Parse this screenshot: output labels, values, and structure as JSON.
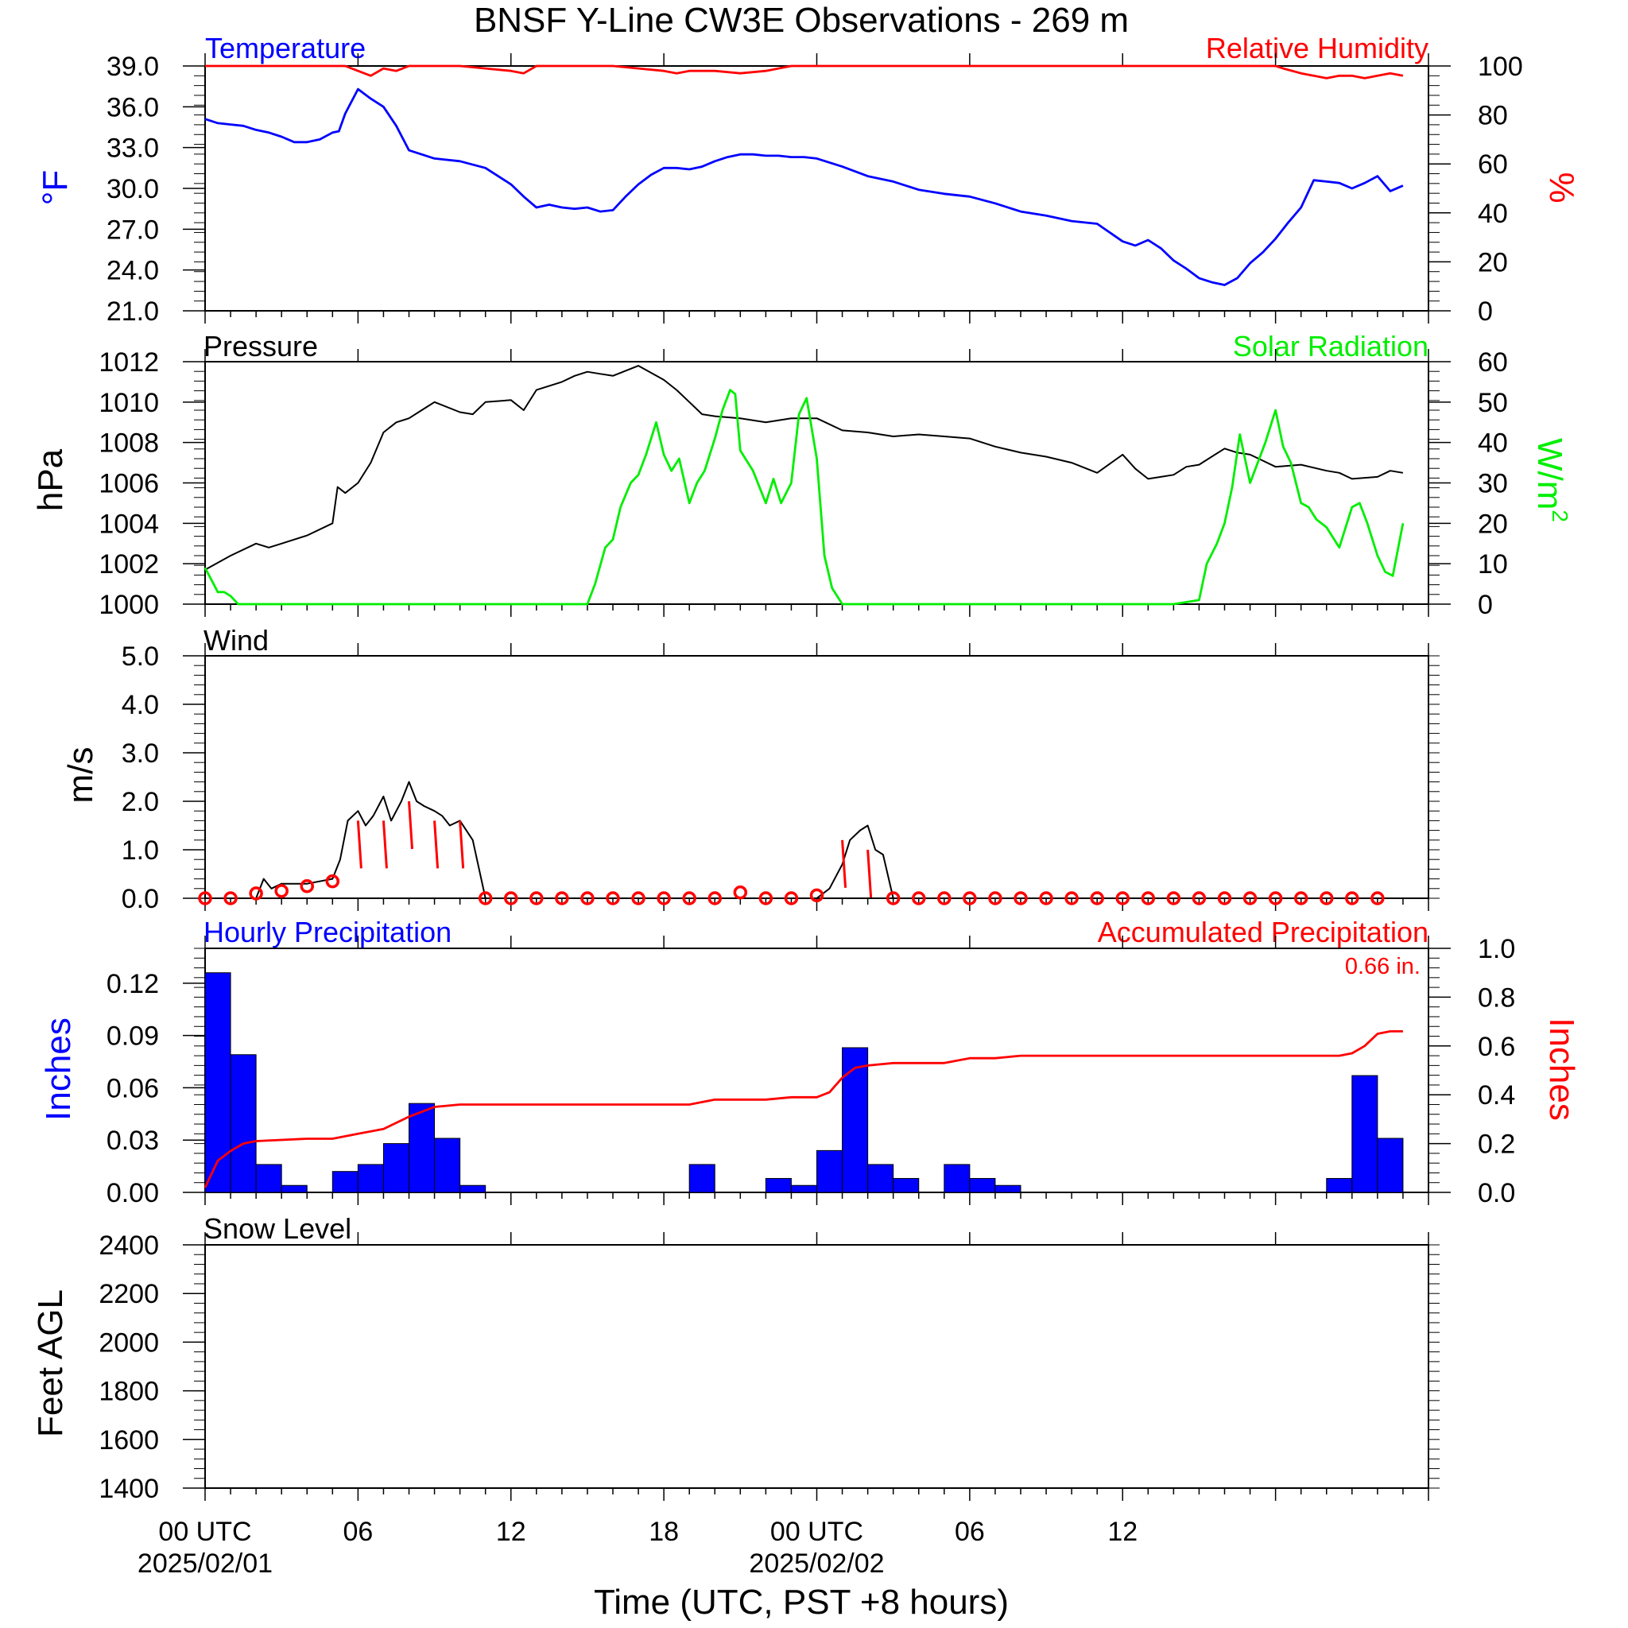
{
  "title": "BNSF Y-Line CW3E Observations - 269 m",
  "xaxis": {
    "title": "Time (UTC, PST +8 hours)",
    "tick_labels": [
      "00 UTC",
      "06",
      "12",
      "18",
      "00 UTC",
      "06",
      "12"
    ],
    "tick_hours": [
      0,
      6,
      12,
      18,
      24,
      30,
      36
    ],
    "date_labels": [
      "2025/02/01",
      "2025/02/02"
    ],
    "date_hours": [
      0,
      24
    ],
    "range_hours": [
      0,
      48
    ]
  },
  "colors": {
    "blue": "#0000ff",
    "red": "#ff0000",
    "green": "#00ee00",
    "black": "#000000"
  },
  "chart_data": [
    {
      "type": "line",
      "panel": "temperature-humidity",
      "left_title": "Temperature",
      "right_title": "Relative Humidity",
      "ylabel": "°F",
      "ylabel_right": "%",
      "ylim": [
        21,
        39
      ],
      "ylim_right": [
        0,
        100
      ],
      "yticks": [
        "21.0",
        "24.0",
        "27.0",
        "30.0",
        "33.0",
        "36.0",
        "39.0"
      ],
      "yticks_right": [
        "0",
        "20",
        "40",
        "60",
        "80",
        "100"
      ],
      "series": [
        {
          "name": "Temperature",
          "axis": "left",
          "color": "#0000ff",
          "x": [
            0,
            0.5,
            1,
            1.5,
            2,
            2.5,
            3,
            3.5,
            4,
            4.5,
            5,
            5.25,
            5.5,
            6,
            6.5,
            7,
            7.5,
            8,
            9,
            10,
            11,
            12,
            12.5,
            13,
            13.5,
            14,
            14.5,
            15,
            15.5,
            16,
            16.5,
            17,
            17.5,
            18,
            18.5,
            19,
            19.5,
            20,
            20.5,
            21,
            21.5,
            22,
            22.5,
            23,
            23.5,
            24,
            25,
            26,
            27,
            28,
            29,
            30,
            31,
            32,
            33,
            34,
            35,
            36,
            36.5,
            37,
            37.5,
            38,
            38.5,
            39,
            39.5,
            40,
            40.5,
            41,
            41.5,
            42,
            42.5,
            43,
            43.5,
            44,
            44.5,
            45,
            45.5,
            46,
            46.5,
            47
          ],
          "values": [
            35.1,
            34.8,
            34.7,
            34.6,
            34.3,
            34.1,
            33.8,
            33.4,
            33.4,
            33.6,
            34.1,
            34.2,
            35.5,
            37.3,
            36.6,
            36.0,
            34.6,
            32.8,
            32.2,
            32.0,
            31.5,
            30.3,
            29.4,
            28.6,
            28.8,
            28.6,
            28.5,
            28.6,
            28.3,
            28.4,
            29.4,
            30.3,
            31.0,
            31.5,
            31.5,
            31.4,
            31.6,
            32.0,
            32.3,
            32.5,
            32.5,
            32.4,
            32.4,
            32.3,
            32.3,
            32.2,
            31.6,
            30.9,
            30.5,
            29.9,
            29.6,
            29.4,
            28.9,
            28.3,
            28.0,
            27.6,
            27.4,
            26.1,
            25.8,
            26.2,
            25.6,
            24.7,
            24.1,
            23.4,
            23.1,
            22.9,
            23.4,
            24.5,
            25.3,
            26.3,
            27.5,
            28.6,
            30.6,
            30.5,
            30.4,
            30.0,
            30.4,
            30.9,
            29.8,
            30.2
          ]
        },
        {
          "name": "Relative Humidity",
          "axis": "right",
          "color": "#ff0000",
          "x": [
            0,
            4,
            5.5,
            6,
            6.5,
            7,
            7.5,
            8,
            9,
            10,
            11,
            12,
            12.5,
            13,
            14,
            15,
            16,
            17,
            18,
            18.5,
            19,
            20,
            21,
            22,
            23,
            24,
            30,
            36,
            40,
            41,
            42,
            42.3,
            43,
            43.5,
            44,
            44.5,
            45,
            45.5,
            46,
            46.5,
            47
          ],
          "values": [
            100,
            100,
            100,
            98,
            96,
            99,
            98,
            100,
            100,
            100,
            99,
            98,
            97,
            100,
            100,
            100,
            100,
            99,
            98,
            97,
            98,
            98,
            97,
            98,
            100,
            100,
            100,
            100,
            100,
            100,
            100,
            99,
            97,
            96,
            95,
            96,
            96,
            95,
            96,
            97,
            96
          ]
        }
      ]
    },
    {
      "type": "line",
      "panel": "pressure-solar",
      "left_title": "Pressure",
      "right_title": "Solar Radiation",
      "ylabel": "hPa",
      "ylabel_right": "W/m",
      "ylabel_right_sup": "2",
      "ylim": [
        1000,
        1012
      ],
      "ylim_right": [
        0,
        60
      ],
      "yticks": [
        "1000",
        "1002",
        "1004",
        "1006",
        "1008",
        "1010",
        "1012"
      ],
      "yticks_right": [
        "0",
        "10",
        "20",
        "30",
        "40",
        "50",
        "60"
      ],
      "series": [
        {
          "name": "Pressure",
          "axis": "left",
          "color": "#000000",
          "x": [
            0,
            1,
            2,
            2.5,
            3,
            4,
            5,
            5.2,
            5.5,
            6,
            6.5,
            7,
            7.5,
            8,
            8.5,
            9,
            10,
            10.5,
            11,
            12,
            12.5,
            13,
            14,
            14.5,
            15,
            15.5,
            16,
            17,
            18,
            18.5,
            19,
            19.5,
            20,
            21,
            22,
            23,
            24,
            25,
            26,
            27,
            28,
            29,
            30,
            31,
            32,
            33,
            34,
            35,
            36,
            36.5,
            37,
            37.5,
            38,
            38.5,
            39,
            40,
            40.5,
            41,
            41.5,
            42,
            43,
            44,
            44.5,
            45,
            46,
            46.5,
            47
          ],
          "values": [
            1001.7,
            1002.4,
            1003.0,
            1002.8,
            1003.0,
            1003.4,
            1004.0,
            1005.8,
            1005.5,
            1006.0,
            1007.0,
            1008.5,
            1009.0,
            1009.2,
            1009.6,
            1010.0,
            1009.5,
            1009.4,
            1010.0,
            1010.1,
            1009.6,
            1010.6,
            1011.0,
            1011.3,
            1011.5,
            1011.4,
            1011.3,
            1011.8,
            1011.1,
            1010.6,
            1010.0,
            1009.4,
            1009.3,
            1009.2,
            1009.0,
            1009.2,
            1009.2,
            1008.6,
            1008.5,
            1008.3,
            1008.4,
            1008.3,
            1008.2,
            1007.8,
            1007.5,
            1007.3,
            1007.0,
            1006.5,
            1007.4,
            1006.7,
            1006.2,
            1006.3,
            1006.4,
            1006.8,
            1006.9,
            1007.7,
            1007.5,
            1007.4,
            1007.1,
            1006.8,
            1006.9,
            1006.6,
            1006.5,
            1006.2,
            1006.3,
            1006.6,
            1006.5
          ]
        },
        {
          "name": "Solar Radiation",
          "axis": "right",
          "color": "#00ee00",
          "x": [
            0,
            0.5,
            0.75,
            1,
            1.3,
            15,
            15.3,
            15.7,
            16,
            16.3,
            16.7,
            17,
            17.3,
            17.7,
            18,
            18.3,
            18.6,
            19,
            19.3,
            19.6,
            20,
            20.3,
            20.6,
            20.8,
            21,
            21.5,
            22,
            22.3,
            22.6,
            23,
            23.3,
            23.6,
            24,
            24.3,
            24.6,
            25,
            25.3,
            26,
            26.5,
            27,
            30,
            38,
            39,
            39.3,
            39.7,
            40,
            40.3,
            40.6,
            41,
            41.3,
            41.6,
            42,
            42.3,
            42.6,
            43,
            43.3,
            43.6,
            44,
            44.5,
            45,
            45.3,
            45.6,
            46,
            46.3,
            46.6,
            47
          ],
          "values": [
            9,
            3,
            3,
            2,
            0,
            0,
            5,
            14,
            16,
            24,
            30,
            32,
            37,
            45,
            37,
            33,
            36,
            25,
            30,
            33,
            41,
            48,
            53,
            52,
            38,
            33,
            25,
            31,
            25,
            30,
            47,
            51,
            36,
            12,
            4,
            0,
            0,
            0,
            0,
            0,
            0,
            0,
            1,
            10,
            15,
            20,
            29,
            42,
            30,
            35,
            40,
            48,
            39,
            35,
            25,
            24,
            21,
            19,
            14,
            24,
            25,
            20,
            12,
            8,
            7,
            20
          ]
        }
      ]
    },
    {
      "type": "line",
      "panel": "wind",
      "left_title": "Wind",
      "ylabel": "m/s",
      "ylim": [
        0,
        5
      ],
      "yticks": [
        "0.0",
        "1.0",
        "2.0",
        "3.0",
        "4.0",
        "5.0"
      ],
      "series": [
        {
          "name": "Wind",
          "axis": "left",
          "color": "#000000",
          "x": [
            0,
            1,
            2,
            2.3,
            2.6,
            3,
            3.5,
            4,
            5,
            5.3,
            5.6,
            6,
            6.3,
            6.6,
            7,
            7.3,
            7.7,
            8,
            8.3,
            8.6,
            9,
            9.3,
            9.6,
            10,
            10.5,
            11,
            12,
            24,
            24.5,
            25,
            25.3,
            25.7,
            26,
            26.3,
            26.6,
            27,
            48
          ],
          "values": [
            0,
            0,
            0,
            0.4,
            0.2,
            0.3,
            0.3,
            0.3,
            0.4,
            0.8,
            1.6,
            1.8,
            1.5,
            1.7,
            2.1,
            1.6,
            2.0,
            2.4,
            2.0,
            1.9,
            1.8,
            1.7,
            1.5,
            1.6,
            1.2,
            0,
            0,
            0,
            0.2,
            0.7,
            1.2,
            1.4,
            1.5,
            1.0,
            0.9,
            0,
            0
          ]
        }
      ],
      "direction_markers": {
        "calm_hours": [
          0,
          1,
          2,
          3,
          4,
          5,
          11,
          12,
          13,
          14,
          15,
          16,
          17,
          18,
          19,
          20,
          21,
          22,
          23,
          24,
          27,
          28,
          29,
          30,
          31,
          32,
          33,
          34,
          35,
          36,
          37,
          38,
          39,
          40,
          41,
          42,
          43,
          44,
          45,
          46
        ],
        "calm_values": [
          0,
          0,
          0.1,
          0.15,
          0.25,
          0.35,
          0,
          0,
          0,
          0,
          0,
          0,
          0,
          0,
          0,
          0,
          0.12,
          0,
          0,
          0.06,
          0,
          0,
          0,
          0,
          0,
          0,
          0,
          0,
          0,
          0,
          0,
          0,
          0,
          0,
          0,
          0,
          0,
          0,
          0,
          0
        ],
        "barb_hours": [
          6,
          7,
          8,
          9,
          10,
          25,
          26
        ],
        "barb_values": [
          1.6,
          1.6,
          2.0,
          1.6,
          1.6,
          1.2,
          1.0
        ]
      }
    },
    {
      "type": "bar",
      "panel": "precipitation",
      "left_title": "Hourly Precipitation",
      "right_title": "Accumulated Precipitation",
      "annotation": "0.66 in.",
      "ylabel": "Inches",
      "ylabel_right": "Inches",
      "ylim": [
        0,
        0.14
      ],
      "ylim_right": [
        0,
        1.0
      ],
      "yticks": [
        "0.00",
        "0.03",
        "0.06",
        "0.09",
        "0.12"
      ],
      "yticks_right": [
        "0.0",
        "0.2",
        "0.4",
        "0.6",
        "0.8",
        "1.0"
      ],
      "bar_hours": [
        0,
        1,
        2,
        3,
        5,
        6,
        7,
        8,
        9,
        10,
        19,
        22,
        23,
        24,
        25,
        26,
        27,
        29,
        30,
        31,
        44,
        45,
        46
      ],
      "bar_values": [
        0.126,
        0.079,
        0.016,
        0.004,
        0.012,
        0.016,
        0.028,
        0.051,
        0.031,
        0.004,
        0.016,
        0.008,
        0.004,
        0.024,
        0.083,
        0.016,
        0.008,
        0.016,
        0.008,
        0.004,
        0.008,
        0.067,
        0.031
      ],
      "series": [
        {
          "name": "Accumulated Precipitation",
          "axis": "right",
          "color": "#ff0000",
          "x": [
            0,
            0.5,
            1,
            1.5,
            2,
            3,
            4,
            5,
            6,
            7,
            8,
            9,
            10,
            11,
            19,
            20,
            22,
            23,
            24,
            24.5,
            25,
            25.5,
            26,
            27,
            29,
            30,
            31,
            32,
            44,
            44.5,
            45,
            45.5,
            46,
            46.5,
            47
          ],
          "values": [
            0.02,
            0.13,
            0.17,
            0.2,
            0.21,
            0.215,
            0.22,
            0.22,
            0.24,
            0.26,
            0.31,
            0.35,
            0.36,
            0.36,
            0.36,
            0.38,
            0.38,
            0.39,
            0.39,
            0.41,
            0.47,
            0.51,
            0.52,
            0.53,
            0.53,
            0.55,
            0.55,
            0.56,
            0.56,
            0.56,
            0.57,
            0.6,
            0.65,
            0.66,
            0.66
          ]
        }
      ]
    },
    {
      "type": "line",
      "panel": "snow-level",
      "left_title": "Snow Level",
      "ylabel": "Feet AGL",
      "ylim": [
        1400,
        2400
      ],
      "yticks": [
        "1400",
        "1600",
        "1800",
        "2000",
        "2200",
        "2400"
      ],
      "series": []
    }
  ]
}
